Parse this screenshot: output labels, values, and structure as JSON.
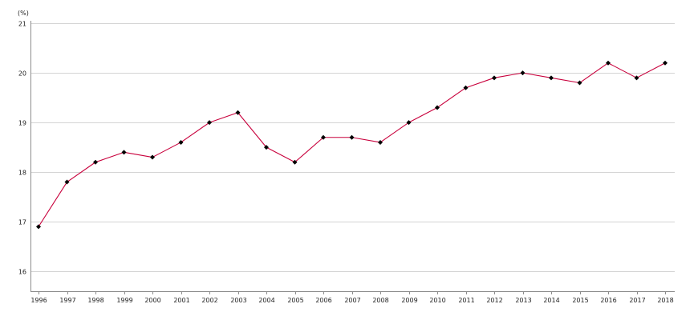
{
  "chart_data": {
    "type": "line",
    "title": "",
    "xlabel": "",
    "ylabel": "",
    "unit_label": "(%)",
    "x": [
      "1996",
      "1997",
      "1998",
      "1999",
      "2000",
      "2001",
      "2002",
      "2003",
      "2004",
      "2005",
      "2006",
      "2007",
      "2008",
      "2009",
      "2010",
      "2011",
      "2012",
      "2013",
      "2014",
      "2015",
      "2016",
      "2017",
      "2018"
    ],
    "series": [
      {
        "values": [
          16.9,
          17.8,
          18.2,
          18.4,
          18.3,
          18.6,
          19.0,
          19.2,
          18.5,
          18.2,
          18.7,
          18.7,
          18.6,
          19.0,
          19.3,
          19.7,
          19.9,
          20.0,
          19.9,
          19.8,
          20.2,
          19.9,
          20.2
        ],
        "line_color": "#c8003c",
        "marker_color": "#000000",
        "marker": "diamond"
      }
    ],
    "yticks": [
      16,
      17,
      18,
      19,
      20,
      21
    ],
    "ylim": [
      15.6,
      21.05
    ],
    "grid": true,
    "grid_color": "#d4d4d4",
    "axis_color": "#8c8c8c"
  }
}
